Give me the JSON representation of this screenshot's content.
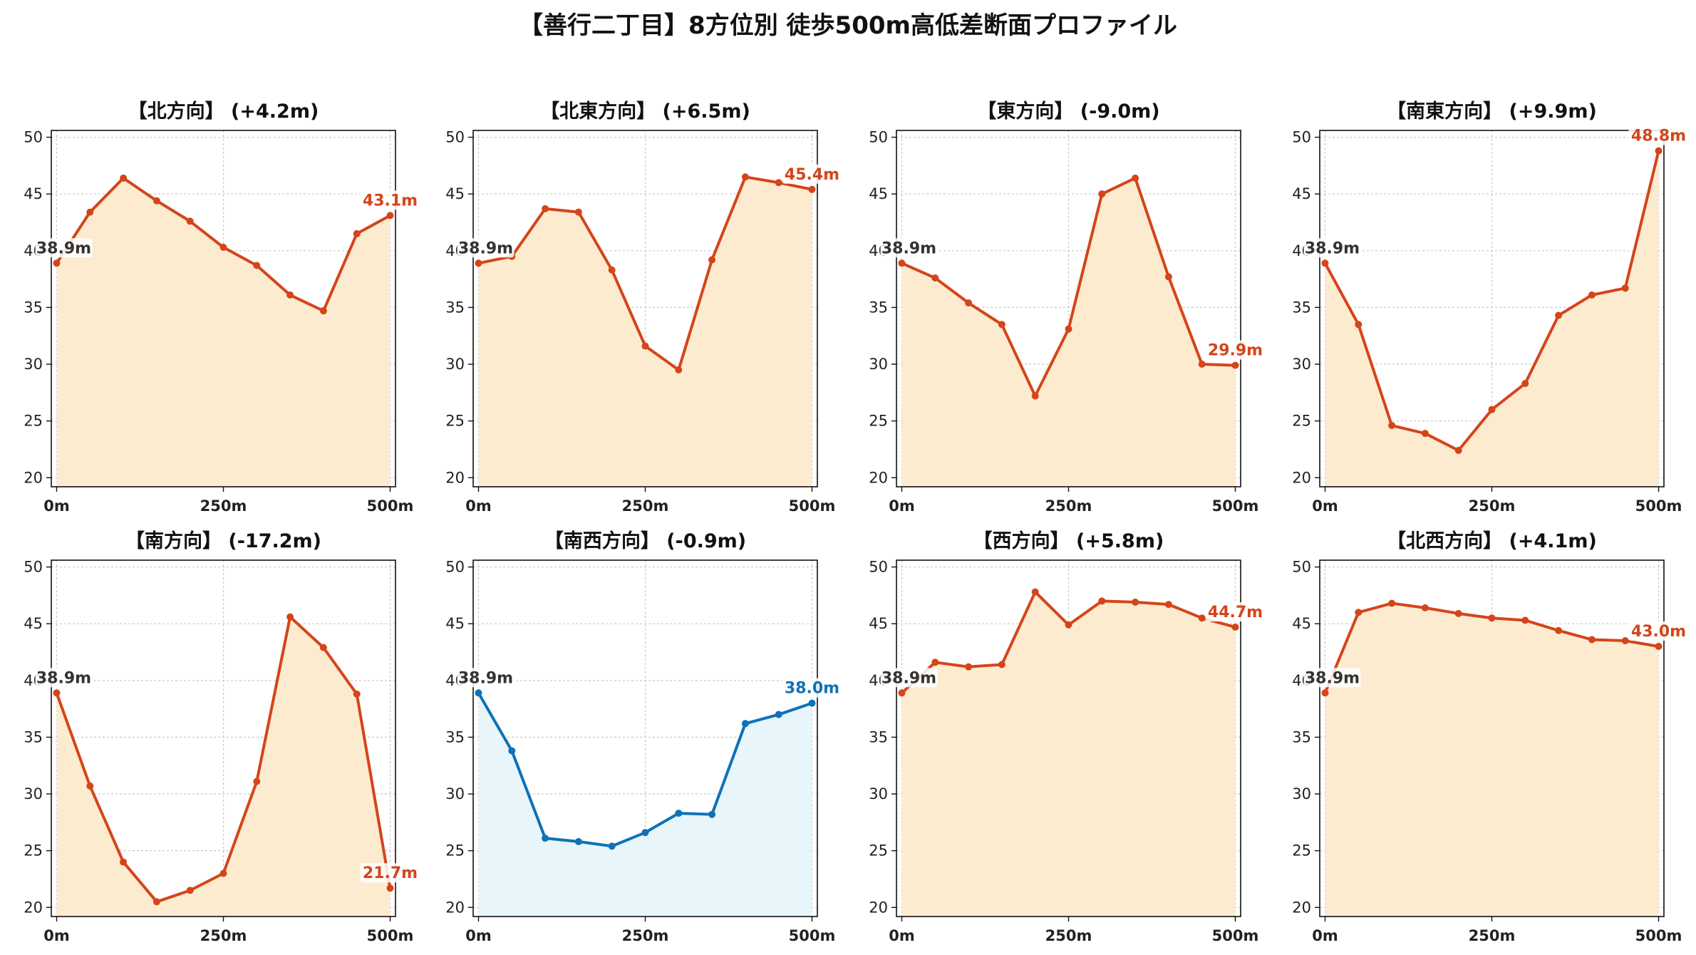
{
  "title": "【善行二丁目】8方位別 徒歩500m高低差断面プロファイル",
  "colors": {
    "up_line": "#d4451a",
    "up_fill": "#fdebd0",
    "down_line": "#0f72b5",
    "down_fill": "#e8f5fb",
    "start_label": "#333333",
    "grid": "#c8c8c8"
  },
  "chart_data": [
    {
      "type": "line",
      "title": "【北方向】 (+4.2m)",
      "tone": "up",
      "x": [
        0,
        50,
        100,
        150,
        200,
        250,
        300,
        350,
        400,
        450,
        500
      ],
      "y": [
        38.9,
        43.4,
        46.4,
        44.4,
        42.6,
        40.3,
        38.7,
        36.1,
        34.7,
        41.5,
        43.1
      ],
      "start_label": "38.9m",
      "end_label": "43.1m"
    },
    {
      "type": "line",
      "title": "【北東方向】 (+6.5m)",
      "tone": "up",
      "x": [
        0,
        50,
        100,
        150,
        200,
        250,
        300,
        350,
        400,
        450,
        500
      ],
      "y": [
        38.9,
        39.5,
        43.7,
        43.4,
        38.3,
        31.6,
        29.5,
        39.2,
        46.5,
        46.0,
        45.4
      ],
      "start_label": "38.9m",
      "end_label": "45.4m"
    },
    {
      "type": "line",
      "title": "【東方向】 (-9.0m)",
      "tone": "up",
      "x": [
        0,
        50,
        100,
        150,
        200,
        250,
        300,
        350,
        400,
        450,
        500
      ],
      "y": [
        38.9,
        37.6,
        35.4,
        33.5,
        27.2,
        33.1,
        45.0,
        46.4,
        37.7,
        30.0,
        29.9
      ],
      "start_label": "38.9m",
      "end_label": "29.9m"
    },
    {
      "type": "line",
      "title": "【南東方向】 (+9.9m)",
      "tone": "up",
      "x": [
        0,
        50,
        100,
        150,
        200,
        250,
        300,
        350,
        400,
        450,
        500
      ],
      "y": [
        38.9,
        33.5,
        24.6,
        23.9,
        22.4,
        26.0,
        28.3,
        34.3,
        36.1,
        36.7,
        48.8
      ],
      "start_label": "38.9m",
      "end_label": "48.8m"
    },
    {
      "type": "line",
      "title": "【南方向】 (-17.2m)",
      "tone": "up",
      "x": [
        0,
        50,
        100,
        150,
        200,
        250,
        300,
        350,
        400,
        450,
        500
      ],
      "y": [
        38.9,
        30.7,
        24.0,
        20.5,
        21.5,
        23.0,
        31.1,
        45.6,
        42.9,
        38.8,
        21.7
      ],
      "start_label": "38.9m",
      "end_label": "21.7m"
    },
    {
      "type": "line",
      "title": "【南西方向】 (-0.9m)",
      "tone": "down",
      "x": [
        0,
        50,
        100,
        150,
        200,
        250,
        300,
        350,
        400,
        450,
        500
      ],
      "y": [
        38.9,
        33.8,
        26.1,
        25.8,
        25.4,
        26.6,
        28.3,
        28.2,
        36.2,
        37.0,
        38.0
      ],
      "start_label": "38.9m",
      "end_label": "38.0m"
    },
    {
      "type": "line",
      "title": "【西方向】 (+5.8m)",
      "tone": "up",
      "x": [
        0,
        50,
        100,
        150,
        200,
        250,
        300,
        350,
        400,
        450,
        500
      ],
      "y": [
        38.9,
        41.6,
        41.2,
        41.4,
        47.8,
        44.9,
        47.0,
        46.9,
        46.7,
        45.5,
        44.7
      ],
      "start_label": "38.9m",
      "end_label": "44.7m"
    },
    {
      "type": "line",
      "title": "【北西方向】 (+4.1m)",
      "tone": "up",
      "x": [
        0,
        50,
        100,
        150,
        200,
        250,
        300,
        350,
        400,
        450,
        500
      ],
      "y": [
        38.9,
        46.0,
        46.8,
        46.4,
        45.9,
        45.5,
        45.3,
        44.4,
        43.6,
        43.5,
        43.0
      ],
      "start_label": "38.9m",
      "end_label": "43.0m"
    }
  ],
  "axes": {
    "ylim": [
      19.2,
      50.6
    ],
    "xlim": [
      -8,
      508
    ],
    "y_ticks": [
      20,
      25,
      30,
      35,
      40,
      45,
      50
    ],
    "y_tick_labels": [
      "20",
      "25",
      "30",
      "35",
      "40",
      "45",
      "50"
    ],
    "x_ticks": [
      0,
      250,
      500
    ],
    "x_tick_labels": [
      "0m",
      "250m",
      "500m"
    ],
    "grid": true
  }
}
